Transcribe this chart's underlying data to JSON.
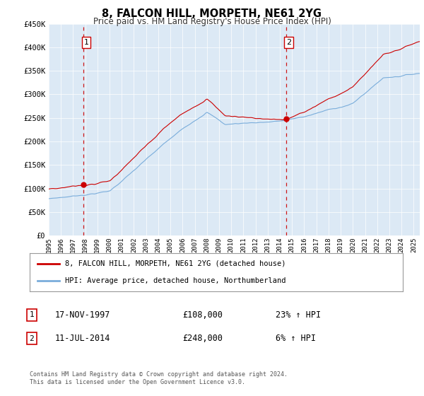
{
  "title": "8, FALCON HILL, MORPETH, NE61 2YG",
  "subtitle": "Price paid vs. HM Land Registry's House Price Index (HPI)",
  "ylim": [
    0,
    450000
  ],
  "yticks": [
    0,
    50000,
    100000,
    150000,
    200000,
    250000,
    300000,
    350000,
    400000,
    450000
  ],
  "ytick_labels": [
    "£0",
    "£50K",
    "£100K",
    "£150K",
    "£200K",
    "£250K",
    "£300K",
    "£350K",
    "£400K",
    "£450K"
  ],
  "sale1_date": "17-NOV-1997",
  "sale1_price": 108000,
  "sale1_price_str": "£108,000",
  "sale1_hpi": "23% ↑ HPI",
  "sale1_t": 1997.875,
  "sale2_date": "11-JUL-2014",
  "sale2_price": 248000,
  "sale2_price_str": "£248,000",
  "sale2_hpi": "6% ↑ HPI",
  "sale2_t": 2014.5,
  "line_color_house": "#cc0000",
  "line_color_hpi": "#7aaddb",
  "vline_color": "#cc0000",
  "marker_color": "#cc0000",
  "legend_label_house": "8, FALCON HILL, MORPETH, NE61 2YG (detached house)",
  "legend_label_hpi": "HPI: Average price, detached house, Northumberland",
  "footnote": "Contains HM Land Registry data © Crown copyright and database right 2024.\nThis data is licensed under the Open Government Licence v3.0.",
  "background_color": "#ffffff",
  "chart_bg_color": "#dce9f5",
  "grid_color": "#ffffff"
}
